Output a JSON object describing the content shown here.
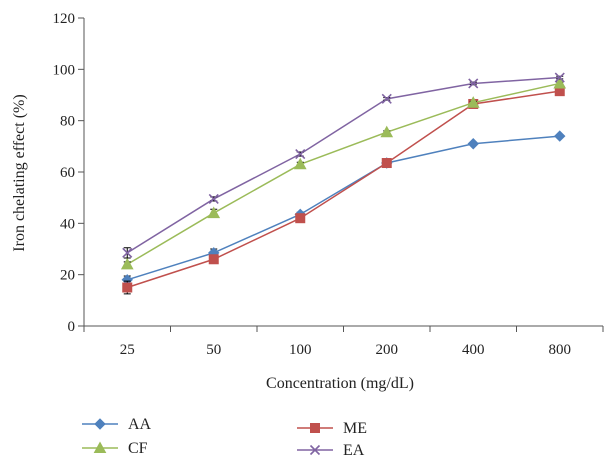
{
  "chart_data": {
    "type": "line",
    "categories": [
      "25",
      "50",
      "100",
      "200",
      "400",
      "800"
    ],
    "xlabel": "Concentration (mg/dL)",
    "ylabel": "Iron chelating effect (%)",
    "ylim": [
      0,
      120
    ],
    "yticks": [
      0,
      20,
      40,
      60,
      80,
      100,
      120
    ],
    "grid": false,
    "legend_position": "bottom",
    "series": [
      {
        "name": "AA",
        "color": "#4F81BD",
        "marker": "diamond",
        "values": [
          18,
          28.5,
          43.5,
          63.5,
          71,
          74
        ],
        "errors": [
          1.5,
          1.5,
          0.8,
          0.5,
          0.5,
          0.5
        ]
      },
      {
        "name": "ME",
        "color": "#C0504D",
        "marker": "square",
        "values": [
          15,
          26,
          42,
          63.5,
          86.5,
          91.5
        ],
        "errors": [
          2.5,
          1.2,
          0.8,
          0.5,
          0.5,
          0.5
        ]
      },
      {
        "name": "CF",
        "color": "#9BBB59",
        "marker": "triangle",
        "values": [
          24,
          44,
          63,
          75.5,
          87,
          94.5
        ],
        "errors": [
          1,
          1.5,
          0.8,
          0.5,
          0.5,
          0.5
        ]
      },
      {
        "name": "EA",
        "color": "#8064A2",
        "marker": "x",
        "values": [
          28.5,
          49.5,
          67,
          88.5,
          94.5,
          96.8
        ],
        "errors": [
          2,
          0.8,
          0.8,
          0.5,
          0.5,
          0.5
        ]
      }
    ]
  }
}
